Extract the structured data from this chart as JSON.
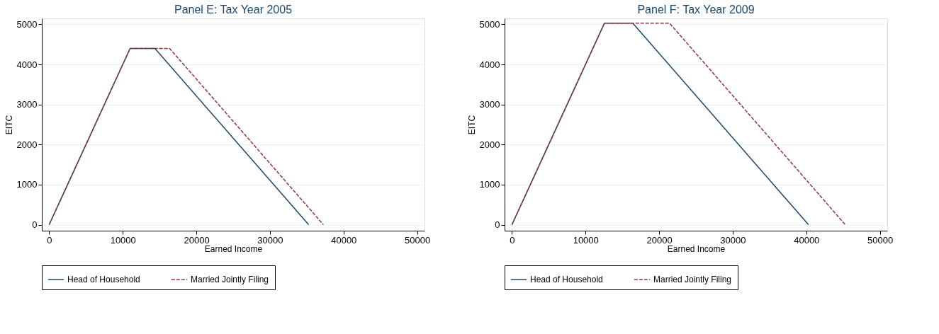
{
  "chart_data": [
    {
      "type": "line",
      "title": "Panel E: Tax Year 2005",
      "xlabel": "Earned Income",
      "ylabel": "EITC",
      "series": [
        {
          "name": "Head of Household",
          "color": "#1a476f",
          "line_style": "solid",
          "x": [
            0,
            11000,
            14370,
            35263
          ],
          "values": [
            0,
            4400,
            4400,
            0
          ]
        },
        {
          "name": "Married Jointly Filing",
          "color": "#90353b",
          "line_style": "dashed",
          "x": [
            0,
            11000,
            16370,
            37263
          ],
          "values": [
            0,
            4400,
            4400,
            0
          ]
        }
      ],
      "xlim": [
        -1000,
        51000
      ],
      "xticks": [
        0,
        10000,
        20000,
        30000,
        40000,
        50000
      ],
      "ylim": [
        -150,
        5150
      ],
      "yticks": [
        0,
        1000,
        2000,
        3000,
        4000,
        5000
      ],
      "grid": "y",
      "legend": "bottom"
    },
    {
      "type": "line",
      "title": "Panel F: Tax Year 2009",
      "xlabel": "Earned Income",
      "ylabel": "EITC",
      "series": [
        {
          "name": "Head of Household",
          "color": "#1a476f",
          "line_style": "solid",
          "x": [
            0,
            12570,
            16420,
            40295
          ],
          "values": [
            0,
            5030,
            5030,
            0
          ]
        },
        {
          "name": "Married Jointly Filing",
          "color": "#90353b",
          "line_style": "dashed",
          "x": [
            0,
            12570,
            21420,
            45295
          ],
          "values": [
            0,
            5030,
            5030,
            0
          ]
        }
      ],
      "xlim": [
        -1000,
        51000
      ],
      "xticks": [
        0,
        10000,
        20000,
        30000,
        40000,
        50000
      ],
      "ylim": [
        -150,
        5150
      ],
      "yticks": [
        0,
        1000,
        2000,
        3000,
        4000,
        5000
      ],
      "grid": "y",
      "legend": "bottom"
    }
  ]
}
